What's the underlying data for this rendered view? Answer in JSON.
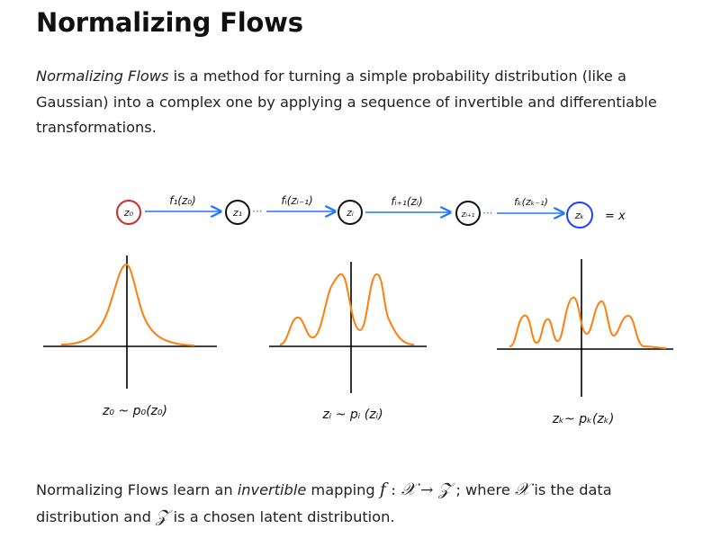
{
  "title": "Normalizing Flows",
  "intro": {
    "emph": "Normalizing Flows",
    "rest": " is a method for turning a simple probability distribution (like a Gaussian) into a complex one by applying a sequence of invertible and differentiable transformations."
  },
  "diagram": {
    "nodes": [
      {
        "label": "z₀",
        "color": "#d62728"
      },
      {
        "label": "z₁",
        "color": "#111111"
      },
      {
        "label": "zᵢ",
        "color": "#111111"
      },
      {
        "label": "zᵢ₊₁",
        "color": "#111111"
      },
      {
        "label": "zₖ",
        "color": "#1f3fff"
      }
    ],
    "arrows": [
      "f₁(z₀)",
      "fᵢ(zᵢ₋₁)",
      "fᵢ₊₁(zᵢ)",
      "fₖ(zₖ₋₁)"
    ],
    "equals_x": "= x",
    "captions": [
      "z₀ ~ p₀(z₀)",
      "zᵢ ~ pᵢ (zᵢ)",
      "zₖ~ pₖ(zₖ)"
    ],
    "curve_color": "#ff7f0e",
    "arrow_color": "#1f77ff"
  },
  "outro": {
    "p1": "Normalizing Flows learn an ",
    "emph": "invertible",
    "p2": " mapping ",
    "math_f": "f",
    "math_colon": " : ",
    "math_X": "𝒳",
    "math_arrow": " → ",
    "math_Z": "𝒵",
    "p3": " ; where ",
    "math_X2": "𝒳",
    "p4": " is the data distribution and ",
    "math_Z2": "𝒵",
    "p5": " is a chosen latent distribution."
  }
}
